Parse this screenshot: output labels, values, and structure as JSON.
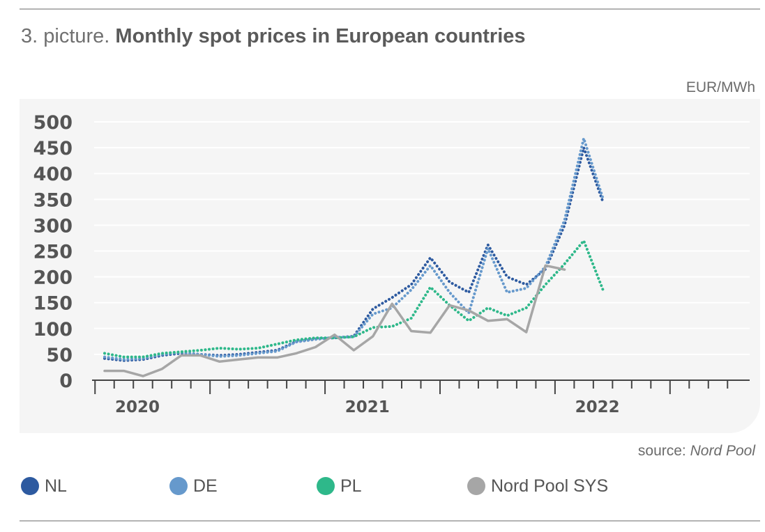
{
  "title_prefix": "3. picture.",
  "title": "Monthly spot prices in European countries",
  "unit_label": "EUR/MWh",
  "source_prefix": "source:",
  "source_name": "Nord Pool",
  "chart_data": {
    "type": "line",
    "title": "Monthly spot prices in European countries",
    "ylabel": "EUR/MWh",
    "xlabel": "",
    "ylim": [
      0,
      500
    ],
    "yticks": [
      0,
      50,
      100,
      150,
      200,
      250,
      300,
      350,
      400,
      450,
      500
    ],
    "x": [
      "2019-12",
      "2020-01",
      "2020-02",
      "2020-03",
      "2020-04",
      "2020-05",
      "2020-06",
      "2020-07",
      "2020-08",
      "2020-09",
      "2020-10",
      "2020-11",
      "2020-12",
      "2021-01",
      "2021-02",
      "2021-03",
      "2021-04",
      "2021-05",
      "2021-06",
      "2021-07",
      "2021-08",
      "2021-09",
      "2021-10",
      "2021-11",
      "2021-12",
      "2022-01",
      "2022-02",
      "2022-03",
      "2022-04",
      "2022-05",
      "2022-06",
      "2022-07",
      "2022-08",
      "2022-09"
    ],
    "year_labels": [
      {
        "label": "2020",
        "at": "2020-02"
      },
      {
        "label": "2021",
        "at": "2021-02"
      },
      {
        "label": "2022",
        "at": "2022-02"
      }
    ],
    "grid": true,
    "legend_position": "bottom",
    "series": [
      {
        "name": "NL",
        "color": "#2d5aa0",
        "style": "dotted",
        "values": [
          42,
          38,
          40,
          48,
          52,
          50,
          48,
          50,
          54,
          58,
          75,
          80,
          82,
          85,
          138,
          160,
          185,
          237,
          190,
          170,
          262,
          200,
          185,
          215,
          300,
          450,
          345,
          null,
          null,
          null,
          null,
          null,
          null,
          null
        ]
      },
      {
        "name": "DE",
        "color": "#6699cc",
        "style": "dotted",
        "values": [
          45,
          40,
          42,
          50,
          54,
          50,
          46,
          48,
          52,
          56,
          74,
          79,
          83,
          84,
          128,
          140,
          175,
          222,
          170,
          130,
          255,
          170,
          178,
          220,
          310,
          468,
          352,
          null,
          null,
          null,
          null,
          null,
          null,
          null
        ]
      },
      {
        "name": "PL",
        "color": "#2eb88a",
        "style": "dotted",
        "values": [
          52,
          45,
          45,
          52,
          55,
          58,
          62,
          60,
          62,
          70,
          78,
          82,
          82,
          84,
          102,
          104,
          120,
          180,
          145,
          115,
          140,
          125,
          140,
          185,
          225,
          270,
          175,
          null,
          null,
          null,
          null,
          null,
          null,
          null
        ]
      },
      {
        "name": "Nord Pool SYS",
        "color": "#a6a6a6",
        "style": "solid",
        "values": [
          18,
          18,
          8,
          22,
          48,
          48,
          36,
          40,
          44,
          44,
          52,
          64,
          88,
          58,
          85,
          148,
          95,
          92,
          145,
          135,
          115,
          118,
          93,
          222,
          214,
          null,
          null,
          null,
          null,
          null,
          null,
          null,
          null,
          null
        ]
      }
    ]
  }
}
